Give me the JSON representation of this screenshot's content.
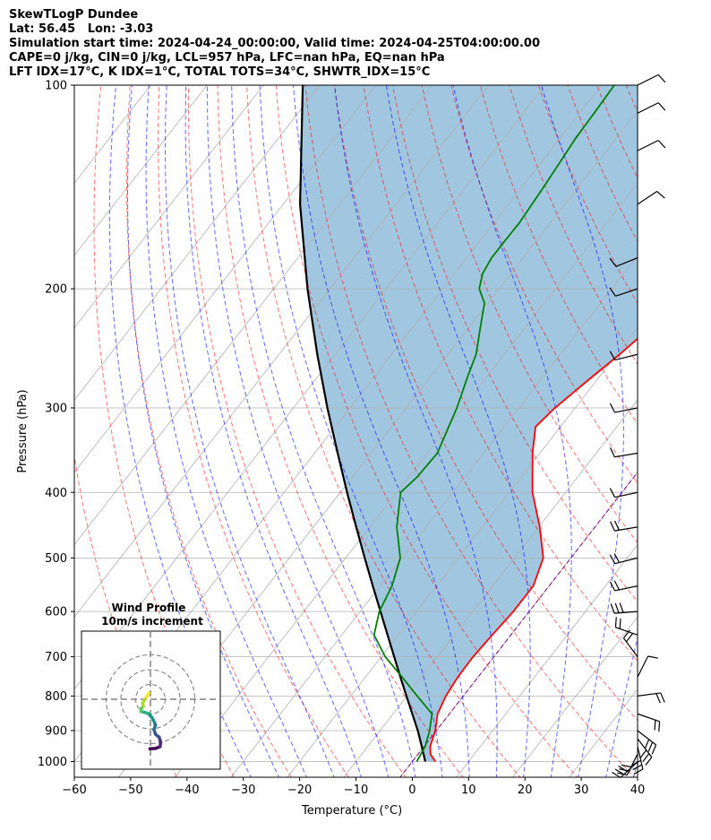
{
  "header": {
    "line1": "SkewTLogP Dundee",
    "line2": "Lat: 56.45   Lon: -3.03",
    "line3": "Simulation start time: 2024-04-24_00:00:00, Valid time: 2024-04-25T04:00:00.00",
    "line4": "CAPE=0 j/kg, CIN=0 j/kg, LCL=957 hPa, LFC=nan hPa, EQ=nan hPa",
    "line5": "LFT IDX=17°C, K IDX=1°C, TOTAL TOTS=34°C, SHWTR_IDX=15°C"
  },
  "chart_data": {
    "type": "line",
    "xlabel": "Temperature (°C)",
    "ylabel": "Pressure (hPa)",
    "xlim": [
      -60,
      40
    ],
    "ylim": [
      1050,
      100
    ],
    "y_scale": "log",
    "x_ticks": [
      "−60",
      "−50",
      "−40",
      "−30",
      "−20",
      "−10",
      "0",
      "10",
      "20",
      "30",
      "40"
    ],
    "y_ticks": [
      1000,
      900,
      800,
      700,
      600,
      500,
      400,
      300,
      200,
      100
    ],
    "grid": true,
    "colors": {
      "temperature": "#ff0000",
      "dewpoint": "#008000",
      "parcel": "#000000",
      "cin_fill": "#1f77b4",
      "dry_adiabats": "#ff0000",
      "moist_adiabats": "#0000ff",
      "mixing_lines": "#808080",
      "isotherm_zero": "#800080"
    },
    "series": [
      {
        "key": "temperature",
        "points": [
          [
            1000,
            4.1
          ],
          [
            975,
            2.2
          ],
          [
            950,
            1.1
          ],
          [
            900,
            -0.2
          ],
          [
            850,
            -2.1
          ],
          [
            800,
            -3.1
          ],
          [
            750,
            -3.6
          ],
          [
            700,
            -3.7
          ],
          [
            650,
            -3.3
          ],
          [
            600,
            -2.8
          ],
          [
            550,
            -2.8
          ],
          [
            500,
            -4.9
          ],
          [
            450,
            -9.8
          ],
          [
            400,
            -15.9
          ],
          [
            350,
            -21.3
          ],
          [
            320,
            -24.4
          ],
          [
            300,
            -23.6
          ],
          [
            270,
            -21.3
          ],
          [
            250,
            -19.5
          ],
          [
            225,
            -17.5
          ],
          [
            200,
            -14.4
          ],
          [
            175,
            -11.4
          ],
          [
            160,
            -8.6
          ],
          [
            150,
            -7.6
          ],
          [
            140,
            -7.1
          ],
          [
            130,
            -5.8
          ],
          [
            120,
            -4.4
          ],
          [
            110,
            -4.0
          ],
          [
            100,
            -3.0
          ]
        ]
      },
      {
        "key": "dewpoint",
        "points": [
          [
            1000,
            0.8
          ],
          [
            975,
            0.5
          ],
          [
            950,
            0.2
          ],
          [
            900,
            -1.2
          ],
          [
            850,
            -3.1
          ],
          [
            800,
            -8.2
          ],
          [
            750,
            -13.5
          ],
          [
            700,
            -19.3
          ],
          [
            650,
            -24.3
          ],
          [
            600,
            -26.6
          ],
          [
            550,
            -27.9
          ],
          [
            500,
            -30.3
          ],
          [
            450,
            -35.2
          ],
          [
            400,
            -39.3
          ],
          [
            380,
            -38.5
          ],
          [
            350,
            -38.2
          ],
          [
            300,
            -41.0
          ],
          [
            270,
            -43.4
          ],
          [
            250,
            -45.0
          ],
          [
            230,
            -47.7
          ],
          [
            210,
            -50.6
          ],
          [
            200,
            -53.5
          ],
          [
            190,
            -55.0
          ],
          [
            180,
            -55.6
          ],
          [
            170,
            -55.6
          ],
          [
            160,
            -55.5
          ],
          [
            140,
            -56.2
          ],
          [
            120,
            -57.2
          ],
          [
            110,
            -57.4
          ],
          [
            100,
            -57.7
          ]
        ]
      },
      {
        "key": "parcel",
        "points": [
          [
            1000,
            2.3
          ],
          [
            957,
            0.0
          ],
          [
            900,
            -3.3
          ],
          [
            850,
            -6.6
          ],
          [
            800,
            -10.1
          ],
          [
            750,
            -13.8
          ],
          [
            700,
            -17.7
          ],
          [
            650,
            -21.9
          ],
          [
            600,
            -26.4
          ],
          [
            550,
            -31.3
          ],
          [
            500,
            -36.6
          ],
          [
            450,
            -42.4
          ],
          [
            400,
            -48.8
          ],
          [
            350,
            -55.9
          ],
          [
            300,
            -64.0
          ],
          [
            250,
            -73.2
          ],
          [
            200,
            -84.0
          ],
          [
            150,
            -97.0
          ],
          [
            100,
            -113.0
          ]
        ]
      }
    ],
    "wind_barbs": [
      {
        "p": 1000,
        "u": -3.5,
        "v": -3.3
      },
      {
        "p": 975,
        "u": -1.5,
        "v": -3.0
      },
      {
        "p": 950,
        "u": 0.7,
        "v": -3.0
      },
      {
        "p": 925,
        "u": 2.3,
        "v": -3.0
      },
      {
        "p": 900,
        "u": 3.1,
        "v": -2.4
      },
      {
        "p": 850,
        "u": 2.3,
        "v": -0.8
      },
      {
        "p": 800,
        "u": 1.5,
        "v": 0.2
      },
      {
        "p": 750,
        "u": 0.6,
        "v": 1.2
      },
      {
        "p": 700,
        "u": -0.9,
        "v": 1.2
      },
      {
        "p": 650,
        "u": -2.0,
        "v": 0.7
      },
      {
        "p": 600,
        "u": -2.6,
        "v": -0.2
      },
      {
        "p": 550,
        "u": -2.4,
        "v": -0.5
      },
      {
        "p": 500,
        "u": -2.0,
        "v": -0.5
      },
      {
        "p": 450,
        "u": -1.8,
        "v": -0.3
      },
      {
        "p": 400,
        "u": -1.4,
        "v": -0.3
      },
      {
        "p": 350,
        "u": -1.2,
        "v": -0.2
      },
      {
        "p": 300,
        "u": -1.0,
        "v": -0.2
      },
      {
        "p": 250,
        "u": -0.8,
        "v": -0.2
      },
      {
        "p": 200,
        "u": -0.6,
        "v": -0.2
      },
      {
        "p": 180,
        "u": -0.5,
        "v": -0.2
      },
      {
        "p": 150,
        "u": 0.3,
        "v": 0.2
      },
      {
        "p": 125,
        "u": 0.4,
        "v": 0.2
      },
      {
        "p": 110,
        "u": 0.4,
        "v": 0.2
      },
      {
        "p": 100,
        "u": 0.4,
        "v": 0.2
      }
    ],
    "inset": {
      "title_line1": "Wind Profile",
      "title_line2": "10m/s increment",
      "ring_increment_ms": 10,
      "hodograph_ms": [
        [
          -0.3,
          -25.6
        ],
        [
          2.6,
          -25.4
        ],
        [
          5.0,
          -24.5
        ],
        [
          5.3,
          -22.2
        ],
        [
          4.5,
          -19.6
        ],
        [
          2.7,
          -18.2
        ],
        [
          1.8,
          -15.7
        ],
        [
          2.6,
          -13.5
        ],
        [
          2.0,
          -11.7
        ],
        [
          0.8,
          -9.5
        ],
        [
          -1.1,
          -7.4
        ],
        [
          -3.3,
          -6.7
        ],
        [
          -5.0,
          -6.3
        ],
        [
          -4.8,
          -4.8
        ],
        [
          -3.7,
          -3.6
        ],
        [
          -4.0,
          -1.8
        ],
        [
          -2.0,
          1.2
        ],
        [
          -0.8,
          3.3
        ]
      ],
      "colors": [
        "#440154",
        "#472d7b",
        "#3b528b",
        "#2c728e",
        "#21918c",
        "#28ae80",
        "#5ec962",
        "#addc30",
        "#fde725"
      ]
    }
  }
}
